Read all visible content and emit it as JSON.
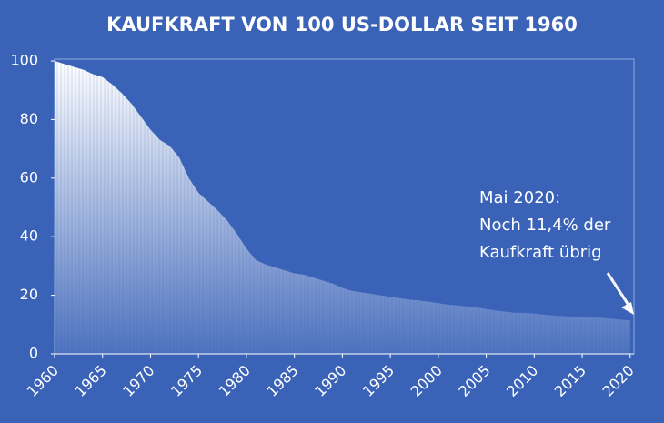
{
  "chart_data": {
    "type": "area",
    "title": "KAUFKRAFT VON 100 US-DOLLAR SEIT 1960",
    "annotation": [
      "Mai 2020:",
      "Noch 11,4% der",
      "Kaufkraft übrig"
    ],
    "x": [
      1960,
      1961,
      1962,
      1963,
      1964,
      1965,
      1966,
      1967,
      1968,
      1969,
      1970,
      1971,
      1972,
      1973,
      1974,
      1975,
      1976,
      1977,
      1978,
      1979,
      1980,
      1981,
      1982,
      1983,
      1984,
      1985,
      1986,
      1987,
      1988,
      1989,
      1990,
      1991,
      1992,
      1993,
      1994,
      1995,
      1996,
      1997,
      1998,
      1999,
      2000,
      2001,
      2002,
      2003,
      2004,
      2005,
      2006,
      2007,
      2008,
      2009,
      2010,
      2011,
      2012,
      2013,
      2014,
      2015,
      2016,
      2017,
      2018,
      2019,
      2020
    ],
    "values": [
      100,
      99,
      98,
      97,
      95.5,
      94.5,
      92,
      89,
      85.5,
      81,
      76.5,
      73,
      71,
      67,
      60,
      55,
      52,
      49,
      45.5,
      41,
      36,
      32,
      30.5,
      29.5,
      28.5,
      27.5,
      27,
      26,
      25,
      24,
      22.5,
      21.5,
      21,
      20.5,
      20,
      19.5,
      19,
      18.5,
      18.2,
      17.8,
      17.3,
      16.8,
      16.5,
      16.2,
      15.8,
      15.3,
      14.8,
      14.4,
      14,
      14,
      13.8,
      13.4,
      13.1,
      12.9,
      12.7,
      12.7,
      12.5,
      12.3,
      12,
      11.7,
      11.4
    ],
    "color": "#ffffff",
    "xlim": [
      1960,
      2020.4
    ],
    "xticks": [
      1960,
      1965,
      1970,
      1975,
      1980,
      1985,
      1990,
      1995,
      2000,
      2005,
      2010,
      2015,
      2020
    ],
    "ylim": [
      0,
      100
    ],
    "yticks": [
      0,
      20,
      40,
      60,
      80,
      100
    ],
    "grid": false
  }
}
